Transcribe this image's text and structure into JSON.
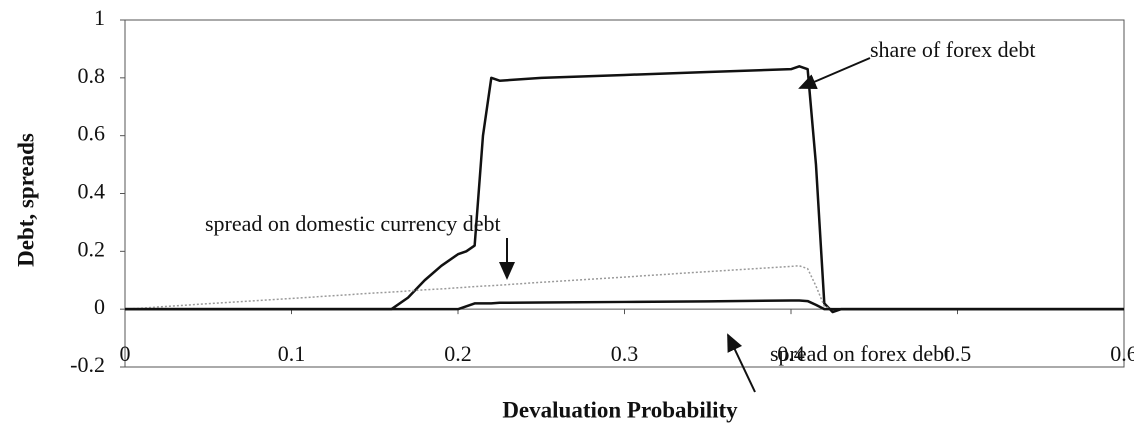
{
  "chart_data": {
    "type": "line",
    "xlabel": "Devaluation Probability",
    "ylabel": "Debt, spreads",
    "x": [
      0,
      0.05,
      0.1,
      0.15,
      0.16,
      0.17,
      0.18,
      0.19,
      0.2,
      0.205,
      0.21,
      0.215,
      0.22,
      0.225,
      0.25,
      0.3,
      0.35,
      0.4,
      0.405,
      0.41,
      0.415,
      0.42,
      0.425,
      0.43,
      0.45,
      0.5,
      0.55,
      0.6
    ],
    "series": [
      {
        "name": "share of forex debt",
        "color": "#111111",
        "values": [
          0,
          0,
          0,
          0,
          0,
          0.04,
          0.1,
          0.15,
          0.19,
          0.2,
          0.22,
          0.6,
          0.8,
          0.79,
          0.8,
          0.81,
          0.82,
          0.83,
          0.84,
          0.83,
          0.5,
          0.02,
          -0.01,
          0,
          0,
          0,
          0,
          0
        ]
      },
      {
        "name": "spread on domestic currency debt",
        "color": "#9a9a9a",
        "values": [
          0,
          0.019,
          0.037,
          0.056,
          0.059,
          0.063,
          0.067,
          0.07,
          0.074,
          0.076,
          0.078,
          0.08,
          0.081,
          0.083,
          0.093,
          0.111,
          0.13,
          0.148,
          0.15,
          0.14,
          0.08,
          0.01,
          0,
          0,
          0,
          0,
          0,
          0
        ]
      },
      {
        "name": "spread on forex debt",
        "color": "#111111",
        "values": [
          0,
          0,
          0,
          0,
          0,
          0,
          0,
          0,
          0,
          0.01,
          0.02,
          0.02,
          0.02,
          0.022,
          0.023,
          0.025,
          0.027,
          0.03,
          0.03,
          0.028,
          0.015,
          0,
          0,
          0,
          0,
          0,
          0,
          0
        ]
      }
    ],
    "xlim": [
      0,
      0.6
    ],
    "ylim": [
      -0.2,
      1
    ],
    "xticks": [
      0,
      0.1,
      0.2,
      0.3,
      0.4,
      0.5,
      0.6
    ],
    "yticks": [
      -0.2,
      0,
      0.2,
      0.4,
      0.6,
      0.8,
      1
    ],
    "grid": false
  }
}
